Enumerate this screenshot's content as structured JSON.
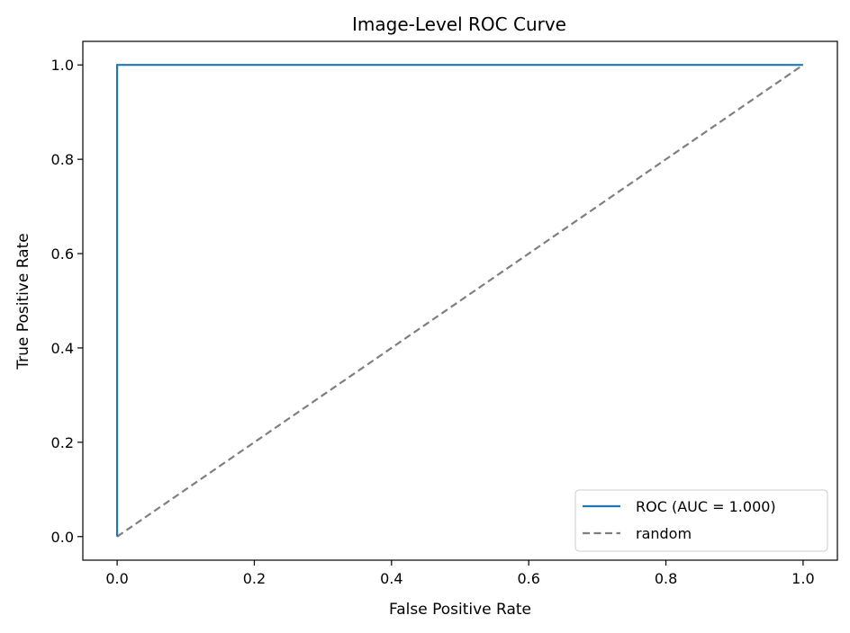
{
  "chart_data": {
    "type": "line",
    "title": "Image-Level ROC Curve",
    "xlabel": "False Positive Rate",
    "ylabel": "True Positive Rate",
    "xlim": [
      -0.05,
      1.05
    ],
    "ylim": [
      -0.05,
      1.05
    ],
    "xticks": [
      0.0,
      0.2,
      0.4,
      0.6,
      0.8,
      1.0
    ],
    "yticks": [
      0.0,
      0.2,
      0.4,
      0.6,
      0.8,
      1.0
    ],
    "xtick_labels": [
      "0.0",
      "0.2",
      "0.4",
      "0.6",
      "0.8",
      "1.0"
    ],
    "ytick_labels": [
      "0.0",
      "0.2",
      "0.4",
      "0.6",
      "0.8",
      "1.0"
    ],
    "grid": false,
    "legend_position": "lower-right",
    "series": [
      {
        "name": "ROC (AUC = 1.000)",
        "style": "solid",
        "color": "#1f77b4",
        "x": [
          0.0,
          0.0,
          1.0
        ],
        "y": [
          0.0,
          1.0,
          1.0
        ]
      },
      {
        "name": "random",
        "style": "dashed",
        "color": "#7f7f7f",
        "x": [
          0.0,
          1.0
        ],
        "y": [
          0.0,
          1.0
        ]
      }
    ]
  }
}
